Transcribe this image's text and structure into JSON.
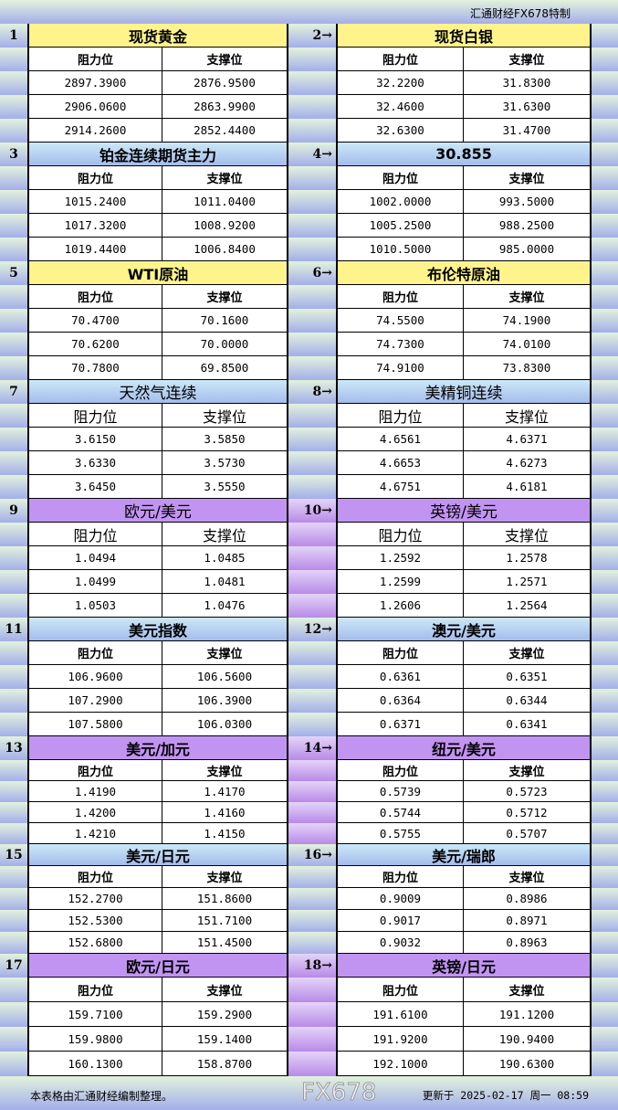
{
  "brand": "汇通财经FX678特制",
  "col_headers": {
    "resistance": "阻力位",
    "support": "支撑位"
  },
  "sections": [
    {
      "left": {
        "num": "1",
        "name": "现货黄金",
        "rows": [
          [
            "2897.3900",
            "2876.9500"
          ],
          [
            "2906.0600",
            "2863.9900"
          ],
          [
            "2914.2600",
            "2852.4400"
          ]
        ]
      },
      "right": {
        "num": "2→",
        "name": "现货白银",
        "rows": [
          [
            "32.2200",
            "31.8300"
          ],
          [
            "32.4600",
            "31.6300"
          ],
          [
            "32.6300",
            "31.4700"
          ]
        ]
      },
      "color": "yellow"
    },
    {
      "left": {
        "num": "3",
        "name": "铂金连续期货主力",
        "rows": [
          [
            "1015.2400",
            "1011.0400"
          ],
          [
            "1017.3200",
            "1008.9200"
          ],
          [
            "1019.4400",
            "1006.8400"
          ]
        ]
      },
      "right": {
        "num": "4→",
        "name": "30.855",
        "rows": [
          [
            "1002.0000",
            "993.5000"
          ],
          [
            "1005.2500",
            "988.2500"
          ],
          [
            "1010.5000",
            "985.0000"
          ]
        ]
      },
      "color": "blue"
    },
    {
      "left": {
        "num": "5",
        "name": "WTI原油",
        "rows": [
          [
            "70.4700",
            "70.1600"
          ],
          [
            "70.6200",
            "70.0000"
          ],
          [
            "70.7800",
            "69.8500"
          ]
        ]
      },
      "right": {
        "num": "6→",
        "name": "布伦特原油",
        "rows": [
          [
            "74.5500",
            "74.1900"
          ],
          [
            "74.7300",
            "74.0100"
          ],
          [
            "74.9100",
            "73.8300"
          ]
        ]
      },
      "color": "yellow"
    },
    {
      "left": {
        "num": "7",
        "name": "天然气连续",
        "rows": [
          [
            "3.6150",
            "3.5850"
          ],
          [
            "3.6330",
            "3.5730"
          ],
          [
            "3.6450",
            "3.5550"
          ]
        ]
      },
      "right": {
        "num": "8→",
        "name": "美精铜连续",
        "rows": [
          [
            "4.6561",
            "4.6371"
          ],
          [
            "4.6653",
            "4.6273"
          ],
          [
            "4.6751",
            "4.6181"
          ]
        ]
      },
      "color": "blue",
      "big": true
    },
    {
      "left": {
        "num": "9",
        "name": "欧元/美元",
        "rows": [
          [
            "1.0494",
            "1.0485"
          ],
          [
            "1.0499",
            "1.0481"
          ],
          [
            "1.0503",
            "1.0476"
          ]
        ]
      },
      "right": {
        "num": "10→",
        "name": "英镑/美元",
        "rows": [
          [
            "1.2592",
            "1.2578"
          ],
          [
            "1.2599",
            "1.2571"
          ],
          [
            "1.2606",
            "1.2564"
          ]
        ]
      },
      "color": "purple",
      "big": true
    },
    {
      "left": {
        "num": "11",
        "name": "美元指数",
        "rows": [
          [
            "106.9600",
            "106.5600"
          ],
          [
            "107.2900",
            "106.3900"
          ],
          [
            "107.5800",
            "106.0300"
          ]
        ]
      },
      "right": {
        "num": "12→",
        "name": "澳元/美元",
        "rows": [
          [
            "0.6361",
            "0.6351"
          ],
          [
            "0.6364",
            "0.6344"
          ],
          [
            "0.6371",
            "0.6341"
          ]
        ]
      },
      "color": "blue"
    },
    {
      "left": {
        "num": "13",
        "name": "美元/加元",
        "rows": [
          [
            "1.4190",
            "1.4170"
          ],
          [
            "1.4200",
            "1.4160"
          ],
          [
            "1.4210",
            "1.4150"
          ]
        ]
      },
      "right": {
        "num": "14→",
        "name": "纽元/美元",
        "rows": [
          [
            "0.5739",
            "0.5723"
          ],
          [
            "0.5744",
            "0.5712"
          ],
          [
            "0.5755",
            "0.5707"
          ]
        ]
      },
      "color": "purple"
    },
    {
      "left": {
        "num": "15",
        "name": "美元/日元",
        "rows": [
          [
            "152.2700",
            "151.8600"
          ],
          [
            "152.5300",
            "151.7100"
          ],
          [
            "152.6800",
            "151.4500"
          ]
        ]
      },
      "right": {
        "num": "16→",
        "name": "美元/瑞郎",
        "rows": [
          [
            "0.9009",
            "0.8986"
          ],
          [
            "0.9017",
            "0.8971"
          ],
          [
            "0.9032",
            "0.8963"
          ]
        ]
      },
      "color": "blue"
    },
    {
      "left": {
        "num": "17",
        "name": "欧元/日元",
        "rows": [
          [
            "159.7100",
            "159.2900"
          ],
          [
            "159.9800",
            "159.1400"
          ],
          [
            "160.1300",
            "158.8700"
          ]
        ]
      },
      "right": {
        "num": "18→",
        "name": "英镑/日元",
        "rows": [
          [
            "191.6100",
            "191.1200"
          ],
          [
            "191.9200",
            "190.9400"
          ],
          [
            "192.1000",
            "190.6300"
          ]
        ]
      },
      "color": "purple"
    }
  ],
  "footer": {
    "note": "本表格由汇通财经编制整理。",
    "updated": "更新于 2025-02-17 周一 08:59"
  },
  "watermark": "FX678"
}
